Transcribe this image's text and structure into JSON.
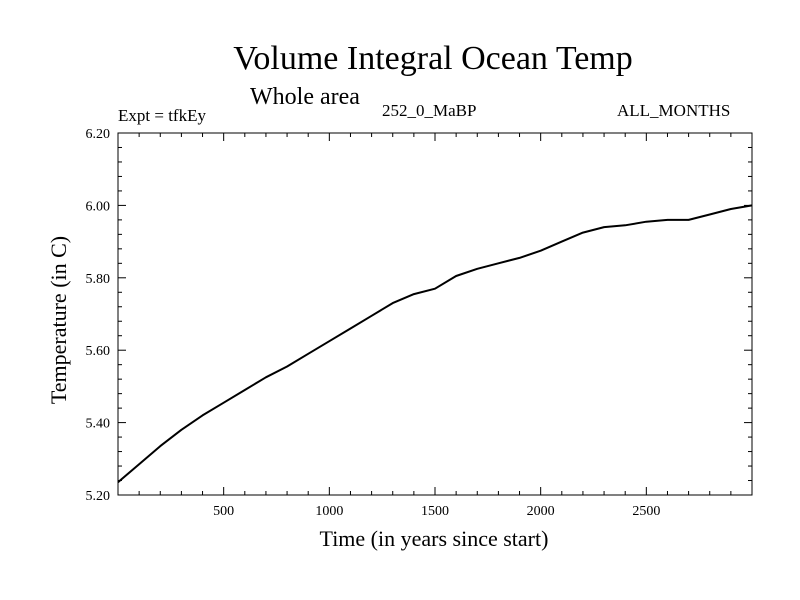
{
  "chart_data": {
    "type": "line",
    "title": "Volume Integral Ocean Temp",
    "subtitle": "Whole area",
    "experiment_label": "Expt = tfkEy",
    "period_label": "252_0_MaBP",
    "months_label": "ALL_MONTHS",
    "xlabel": "Time (in years since start)",
    "ylabel": "Temperature (in C)",
    "xlim": [
      0,
      3000
    ],
    "ylim": [
      5.2,
      6.2
    ],
    "x_ticks": [
      500,
      1000,
      1500,
      2000,
      2500
    ],
    "y_ticks": [
      5.2,
      5.4,
      5.6,
      5.8,
      6.0,
      6.2
    ],
    "y_tick_labels": [
      "5.20",
      "5.40",
      "5.60",
      "5.80",
      "6.00",
      "6.20"
    ],
    "grid": false,
    "line_color": "#000000",
    "series": [
      {
        "x": [
          0,
          100,
          200,
          300,
          400,
          500,
          600,
          700,
          800,
          900,
          1000,
          1100,
          1200,
          1300,
          1400,
          1500,
          1600,
          1700,
          1800,
          1900,
          2000,
          2100,
          2200,
          2300,
          2400,
          2500,
          2600,
          2700,
          2800,
          2900,
          3000
        ],
        "values": [
          5.235,
          5.285,
          5.335,
          5.38,
          5.42,
          5.455,
          5.49,
          5.525,
          5.555,
          5.59,
          5.625,
          5.66,
          5.695,
          5.73,
          5.755,
          5.77,
          5.805,
          5.825,
          5.84,
          5.855,
          5.875,
          5.9,
          5.925,
          5.94,
          5.945,
          5.955,
          5.96,
          5.96,
          5.975,
          5.99,
          6.0
        ]
      }
    ]
  }
}
